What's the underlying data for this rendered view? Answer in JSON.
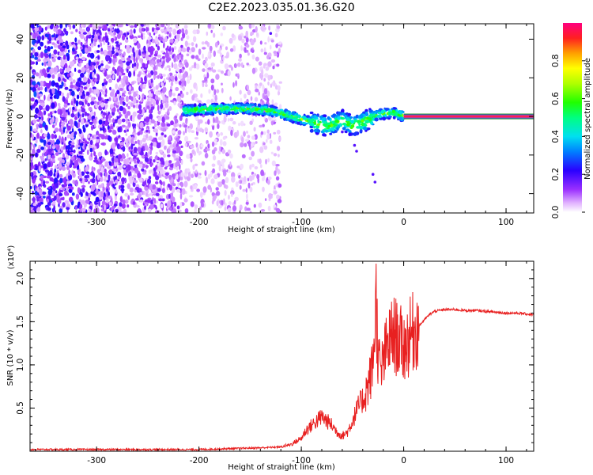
{
  "figure": {
    "title": "C2E2.2023.035.01.36.G20"
  },
  "colors": {
    "snr_line": "#e82020",
    "axis": "#000000",
    "carrier_outer": "#1a8a1a",
    "carrier_mid": "#5a5aff",
    "carrier_inner": "#ff2050"
  },
  "chart_data": [
    {
      "type": "heatmap",
      "title": "",
      "xlabel": "Height of straight line (km)",
      "ylabel": "Frequency (Hz)",
      "xlim": [
        -365,
        127
      ],
      "ylim": [
        -50,
        48
      ],
      "xticks": [
        -300,
        -200,
        -100,
        0,
        100
      ],
      "xtick_labels": [
        "-300",
        "-200",
        "-100",
        "0",
        "100"
      ],
      "yticks": [
        -40,
        -20,
        0,
        20,
        40
      ],
      "ytick_labels": [
        "-40",
        "-20",
        "0",
        "20",
        "40"
      ],
      "colorbar": {
        "label": "Normalized spectral amplitude",
        "range": [
          0,
          1
        ],
        "ticks": [
          0.0,
          0.2,
          0.4,
          0.6,
          0.8
        ],
        "tick_labels": [
          "0.0",
          "0.2",
          "0.4",
          "0.6",
          "0.8"
        ]
      },
      "regions": [
        {
          "kind": "noise-dense",
          "x": [
            -365,
            -215
          ],
          "amplitude": [
            0.05,
            0.3
          ]
        },
        {
          "kind": "noise-sparse",
          "x": [
            -215,
            -120
          ],
          "amplitude": [
            0.02,
            0.1
          ]
        },
        {
          "kind": "signal-ridge",
          "x": [
            -215,
            0
          ],
          "center_freq": [
            [
              -215,
              3
            ],
            [
              -180,
              4
            ],
            [
              -150,
              4
            ],
            [
              -130,
              3
            ],
            [
              -110,
              0
            ],
            [
              -90,
              -3
            ],
            [
              -75,
              -5
            ],
            [
              -60,
              -2
            ],
            [
              -50,
              -5
            ],
            [
              -40,
              -3
            ],
            [
              -25,
              1
            ],
            [
              -10,
              2
            ],
            [
              0,
              0
            ]
          ],
          "amplitude": [
            0.2,
            0.7
          ]
        },
        {
          "kind": "carrier",
          "x": [
            0,
            127
          ],
          "freq": 0,
          "amplitude": 0.95
        }
      ]
    },
    {
      "type": "line",
      "title": "",
      "xlabel": "Height of straight line (km)",
      "ylabel": "SNR (10 * v/v)",
      "y_scale_note": "(x10⁴)",
      "xlim": [
        -365,
        127
      ],
      "ylim": [
        0,
        2.2
      ],
      "xticks": [
        -300,
        -200,
        -100,
        0,
        100
      ],
      "xtick_labels": [
        "-300",
        "-200",
        "-100",
        "0",
        "100"
      ],
      "yticks": [
        0.5,
        1.0,
        1.5,
        2.0
      ],
      "ytick_labels": [
        "0.5",
        "1.0",
        "1.5",
        "2.0"
      ],
      "series": [
        {
          "x": [
            -365,
            -300,
            -250,
            -200,
            -170,
            -140,
            -120,
            -110,
            -100,
            -95,
            -90,
            -85,
            -80,
            -75,
            -70,
            -65,
            -60,
            -55,
            -50,
            -45,
            -40,
            -35,
            -30,
            -27,
            -25,
            -22,
            -20,
            -15,
            -10,
            -5,
            0,
            5,
            10,
            15,
            20,
            25,
            30,
            40,
            50,
            60,
            70,
            80,
            90,
            100,
            110,
            120,
            127
          ],
          "y": [
            0.02,
            0.02,
            0.02,
            0.02,
            0.03,
            0.04,
            0.05,
            0.08,
            0.15,
            0.25,
            0.3,
            0.35,
            0.4,
            0.35,
            0.3,
            0.22,
            0.18,
            0.22,
            0.35,
            0.5,
            0.6,
            0.75,
            1.0,
            1.8,
            1.1,
            0.9,
            1.05,
            1.25,
            1.35,
            1.3,
            1.2,
            1.3,
            1.4,
            1.45,
            1.52,
            1.58,
            1.62,
            1.64,
            1.64,
            1.63,
            1.63,
            1.62,
            1.61,
            1.6,
            1.6,
            1.59,
            1.58
          ]
        }
      ]
    }
  ]
}
